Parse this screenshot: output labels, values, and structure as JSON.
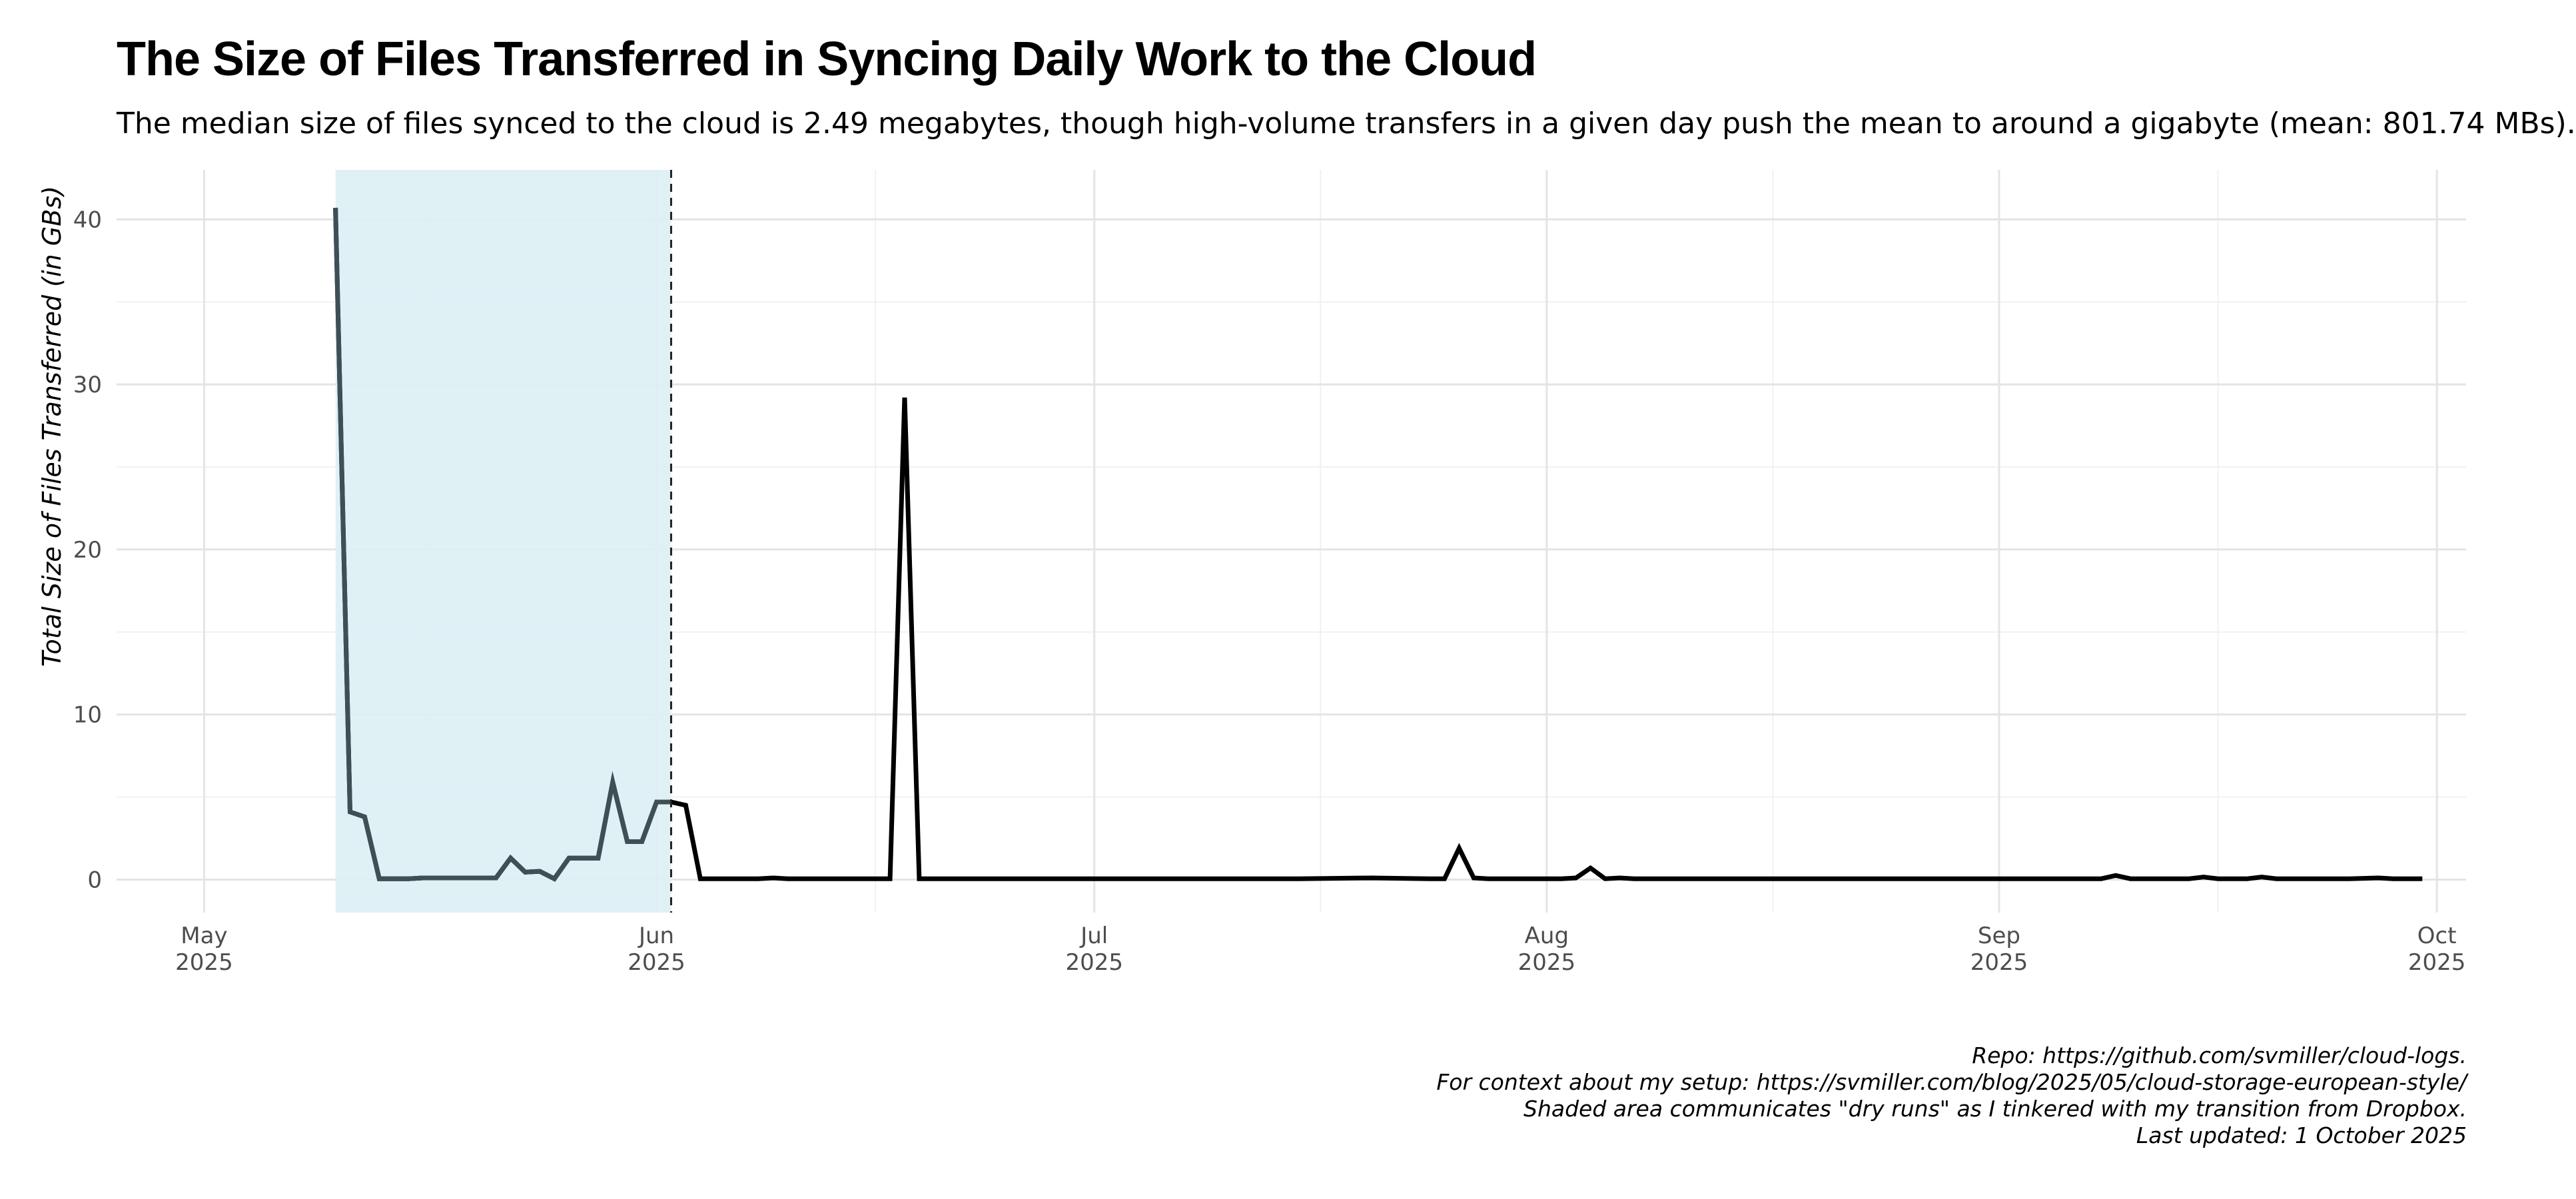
{
  "chart_data": {
    "type": "line",
    "title": "The Size of Files Transferred in Syncing Daily Work to the Cloud",
    "subtitle": "The median size of files synced to the cloud is 2.49 megabytes, though high-volume transfers in a given day push the mean to around a gigabyte (mean: 801.74 MBs).",
    "xlabel": "",
    "ylabel": "Total Size of Files Transferred (in GBs)",
    "xlim": [
      "2025-04-25",
      "2025-10-03"
    ],
    "ylim": [
      -2,
      43
    ],
    "x_ticks": [
      {
        "date": "2025-05-01",
        "label1": "May",
        "label2": "2025"
      },
      {
        "date": "2025-06-01",
        "label1": "Jun",
        "label2": "2025"
      },
      {
        "date": "2025-07-01",
        "label1": "Jul",
        "label2": "2025"
      },
      {
        "date": "2025-08-01",
        "label1": "Aug",
        "label2": "2025"
      },
      {
        "date": "2025-09-01",
        "label1": "Sep",
        "label2": "2025"
      },
      {
        "date": "2025-10-01",
        "label1": "Oct",
        "label2": "2025"
      }
    ],
    "y_ticks": [
      0,
      10,
      20,
      30,
      40
    ],
    "grid": true,
    "shaded_region": {
      "start": "2025-05-10",
      "end": "2025-06-02",
      "color": "#ddf0f5",
      "meaning": "dry runs"
    },
    "vline": {
      "date": "2025-06-02",
      "style": "dashed"
    },
    "colors": {
      "dry_run_line": "#3f4f56",
      "line": "#000000"
    },
    "series": [
      {
        "values": [
          [
            "2025-05-10",
            40.7
          ],
          [
            "2025-05-11",
            4.1
          ],
          [
            "2025-05-12",
            3.8
          ],
          [
            "2025-05-13",
            0.05
          ],
          [
            "2025-05-14",
            0.05
          ],
          [
            "2025-05-15",
            0.05
          ],
          [
            "2025-05-16",
            0.1
          ],
          [
            "2025-05-17",
            0.1
          ],
          [
            "2025-05-18",
            0.1
          ],
          [
            "2025-05-19",
            0.1
          ],
          [
            "2025-05-20",
            0.1
          ],
          [
            "2025-05-21",
            0.1
          ],
          [
            "2025-05-22",
            1.3
          ],
          [
            "2025-05-23",
            0.45
          ],
          [
            "2025-05-24",
            0.5
          ],
          [
            "2025-05-25",
            0.05
          ],
          [
            "2025-05-26",
            1.3
          ],
          [
            "2025-05-27",
            1.3
          ],
          [
            "2025-05-28",
            1.3
          ],
          [
            "2025-05-29",
            5.9
          ],
          [
            "2025-05-30",
            2.3
          ],
          [
            "2025-05-31",
            2.3
          ],
          [
            "2025-06-01",
            4.7
          ],
          [
            "2025-06-02",
            4.7
          ],
          [
            "2025-06-03",
            4.5
          ],
          [
            "2025-06-04",
            0.05
          ],
          [
            "2025-06-05",
            0.05
          ],
          [
            "2025-06-06",
            0.05
          ],
          [
            "2025-06-07",
            0.05
          ],
          [
            "2025-06-08",
            0.05
          ],
          [
            "2025-06-09",
            0.1
          ],
          [
            "2025-06-10",
            0.05
          ],
          [
            "2025-06-11",
            0.05
          ],
          [
            "2025-06-12",
            0.05
          ],
          [
            "2025-06-13",
            0.05
          ],
          [
            "2025-06-14",
            0.05
          ],
          [
            "2025-06-15",
            0.05
          ],
          [
            "2025-06-16",
            0.05
          ],
          [
            "2025-06-17",
            0.05
          ],
          [
            "2025-06-18",
            29.2
          ],
          [
            "2025-06-19",
            0.05
          ],
          [
            "2025-06-20",
            0.05
          ],
          [
            "2025-06-21",
            0.05
          ],
          [
            "2025-06-22",
            0.05
          ],
          [
            "2025-06-23",
            0.05
          ],
          [
            "2025-06-24",
            0.05
          ],
          [
            "2025-06-25",
            0.05
          ],
          [
            "2025-06-26",
            0.05
          ],
          [
            "2025-06-27",
            0.05
          ],
          [
            "2025-06-28",
            0.05
          ],
          [
            "2025-06-29",
            0.05
          ],
          [
            "2025-06-30",
            0.05
          ],
          [
            "2025-07-01",
            0.05
          ],
          [
            "2025-07-05",
            0.05
          ],
          [
            "2025-07-10",
            0.05
          ],
          [
            "2025-07-15",
            0.05
          ],
          [
            "2025-07-20",
            0.1
          ],
          [
            "2025-07-24",
            0.05
          ],
          [
            "2025-07-25",
            0.05
          ],
          [
            "2025-07-26",
            1.9
          ],
          [
            "2025-07-27",
            0.1
          ],
          [
            "2025-07-28",
            0.05
          ],
          [
            "2025-07-29",
            0.05
          ],
          [
            "2025-07-30",
            0.05
          ],
          [
            "2025-08-01",
            0.05
          ],
          [
            "2025-08-02",
            0.05
          ],
          [
            "2025-08-03",
            0.1
          ],
          [
            "2025-08-04",
            0.7
          ],
          [
            "2025-08-05",
            0.05
          ],
          [
            "2025-08-06",
            0.1
          ],
          [
            "2025-08-07",
            0.05
          ],
          [
            "2025-08-10",
            0.05
          ],
          [
            "2025-08-15",
            0.05
          ],
          [
            "2025-08-20",
            0.05
          ],
          [
            "2025-08-25",
            0.05
          ],
          [
            "2025-08-30",
            0.05
          ],
          [
            "2025-09-05",
            0.05
          ],
          [
            "2025-09-08",
            0.05
          ],
          [
            "2025-09-09",
            0.25
          ],
          [
            "2025-09-10",
            0.05
          ],
          [
            "2025-09-14",
            0.05
          ],
          [
            "2025-09-15",
            0.15
          ],
          [
            "2025-09-16",
            0.05
          ],
          [
            "2025-09-18",
            0.05
          ],
          [
            "2025-09-19",
            0.15
          ],
          [
            "2025-09-20",
            0.05
          ],
          [
            "2025-09-25",
            0.05
          ],
          [
            "2025-09-27",
            0.1
          ],
          [
            "2025-09-28",
            0.05
          ],
          [
            "2025-09-30",
            0.05
          ]
        ]
      }
    ]
  },
  "caption": [
    "Repo: https://github.com/svmiller/cloud-logs.",
    "For context about my setup: https://svmiller.com/blog/2025/05/cloud-storage-european-style/",
    "Shaded area communicates \"dry runs\" as I tinkered with my transition from Dropbox.",
    "Last updated: 1 October 2025"
  ]
}
